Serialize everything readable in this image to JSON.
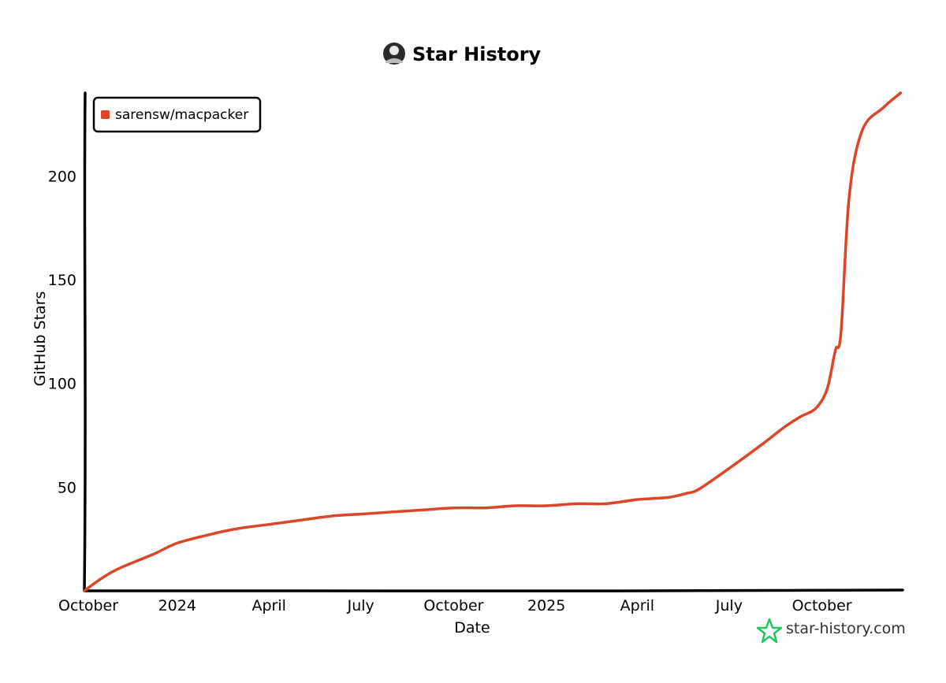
{
  "title": "Star History",
  "chart_data": {
    "type": "line",
    "title": "Star History",
    "xlabel": "Date",
    "ylabel": "GitHub Stars",
    "xlim": [
      "2023-10-01",
      "2025-12-20"
    ],
    "ylim": [
      0,
      240
    ],
    "x_tick_labels": [
      "October",
      "2024",
      "April",
      "July",
      "October",
      "2025",
      "April",
      "July",
      "October"
    ],
    "y_tick_labels": [
      "50",
      "100",
      "150",
      "200"
    ],
    "legend_position": "top-left",
    "grid": false,
    "series": [
      {
        "name": "sarensw/macpacker",
        "color": "#dd4528",
        "x": [
          "2023-10-01",
          "2023-10-15",
          "2023-11-01",
          "2023-11-20",
          "2023-12-10",
          "2024-01-01",
          "2024-02-01",
          "2024-03-01",
          "2024-04-01",
          "2024-05-01",
          "2024-06-01",
          "2024-07-01",
          "2024-08-01",
          "2024-09-01",
          "2024-10-01",
          "2024-11-01",
          "2024-12-01",
          "2025-01-01",
          "2025-02-01",
          "2025-03-01",
          "2025-04-01",
          "2025-05-01",
          "2025-05-20",
          "2025-06-01",
          "2025-07-01",
          "2025-08-01",
          "2025-08-25",
          "2025-09-10",
          "2025-09-25",
          "2025-10-06",
          "2025-10-13",
          "2025-10-15",
          "2025-10-20",
          "2025-10-28",
          "2025-11-10",
          "2025-12-01",
          "2025-12-18"
        ],
        "y": [
          0,
          5,
          10,
          14,
          18,
          23,
          27,
          30,
          32,
          34,
          36,
          37,
          38,
          39,
          40,
          40,
          41,
          41,
          42,
          42,
          44,
          45,
          47,
          49,
          59,
          70,
          79,
          84,
          88,
          97,
          113,
          117,
          125,
          190,
          222,
          233,
          240
        ]
      }
    ]
  },
  "brand": {
    "text": "star-history.com",
    "color": "#22c55e"
  }
}
